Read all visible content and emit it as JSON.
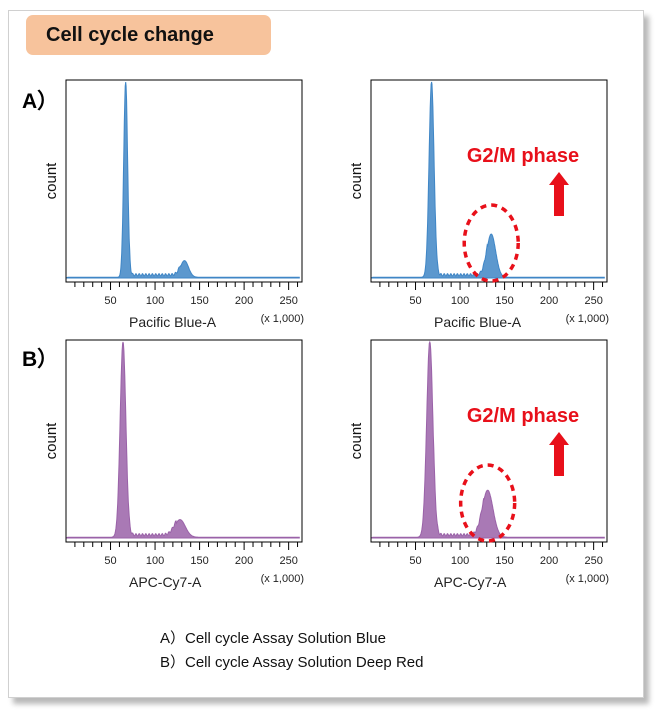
{
  "header": {
    "title": "Cell cycle change"
  },
  "panels": {
    "a_label": "A）",
    "b_label": "B）"
  },
  "captions": [
    "A）Cell cycle Assay Solution Blue",
    "B）Cell cycle Assay Solution Deep Red"
  ],
  "colors": {
    "blue": "#3f86c6",
    "purple": "#9a62a8",
    "annotation": "#e8101a"
  },
  "chart_data": [
    {
      "type": "area",
      "panel": "A",
      "ylabel": "count",
      "xlabel": "Pacific Blue-A",
      "x_unit": "(x 1,000)",
      "xlim": [
        0,
        265
      ],
      "xticks": [
        50,
        100,
        150,
        200,
        250
      ],
      "color": "blue",
      "peaks": [
        {
          "x": 67,
          "height": 1.0,
          "width": 2.2
        },
        {
          "x": 133,
          "height": 0.085,
          "width": 4.5
        }
      ],
      "annotation": ""
    },
    {
      "type": "area",
      "panel": "A",
      "ylabel": "count",
      "xlabel": "Pacific Blue-A",
      "x_unit": "(x 1,000)",
      "xlim": [
        0,
        265
      ],
      "xticks": [
        50,
        100,
        150,
        200,
        250
      ],
      "color": "blue",
      "peaks": [
        {
          "x": 68,
          "height": 1.0,
          "width": 2.8
        },
        {
          "x": 135,
          "height": 0.22,
          "width": 5.0
        }
      ],
      "annotation": "G2/M phase"
    },
    {
      "type": "area",
      "panel": "B",
      "ylabel": "count",
      "xlabel": "APC-Cy7-A",
      "x_unit": "(x 1,000)",
      "xlim": [
        0,
        265
      ],
      "xticks": [
        50,
        100,
        150,
        200,
        250
      ],
      "color": "purple",
      "peaks": [
        {
          "x": 64,
          "height": 1.0,
          "width": 3.2
        },
        {
          "x": 128,
          "height": 0.09,
          "width": 6.0
        }
      ],
      "annotation": ""
    },
    {
      "type": "area",
      "panel": "B",
      "ylabel": "count",
      "xlabel": "APC-Cy7-A",
      "x_unit": "(x 1,000)",
      "xlim": [
        0,
        265
      ],
      "xticks": [
        50,
        100,
        150,
        200,
        250
      ],
      "color": "purple",
      "peaks": [
        {
          "x": 66,
          "height": 1.0,
          "width": 3.5
        },
        {
          "x": 131,
          "height": 0.24,
          "width": 6.0
        }
      ],
      "annotation": "G2/M phase"
    }
  ]
}
